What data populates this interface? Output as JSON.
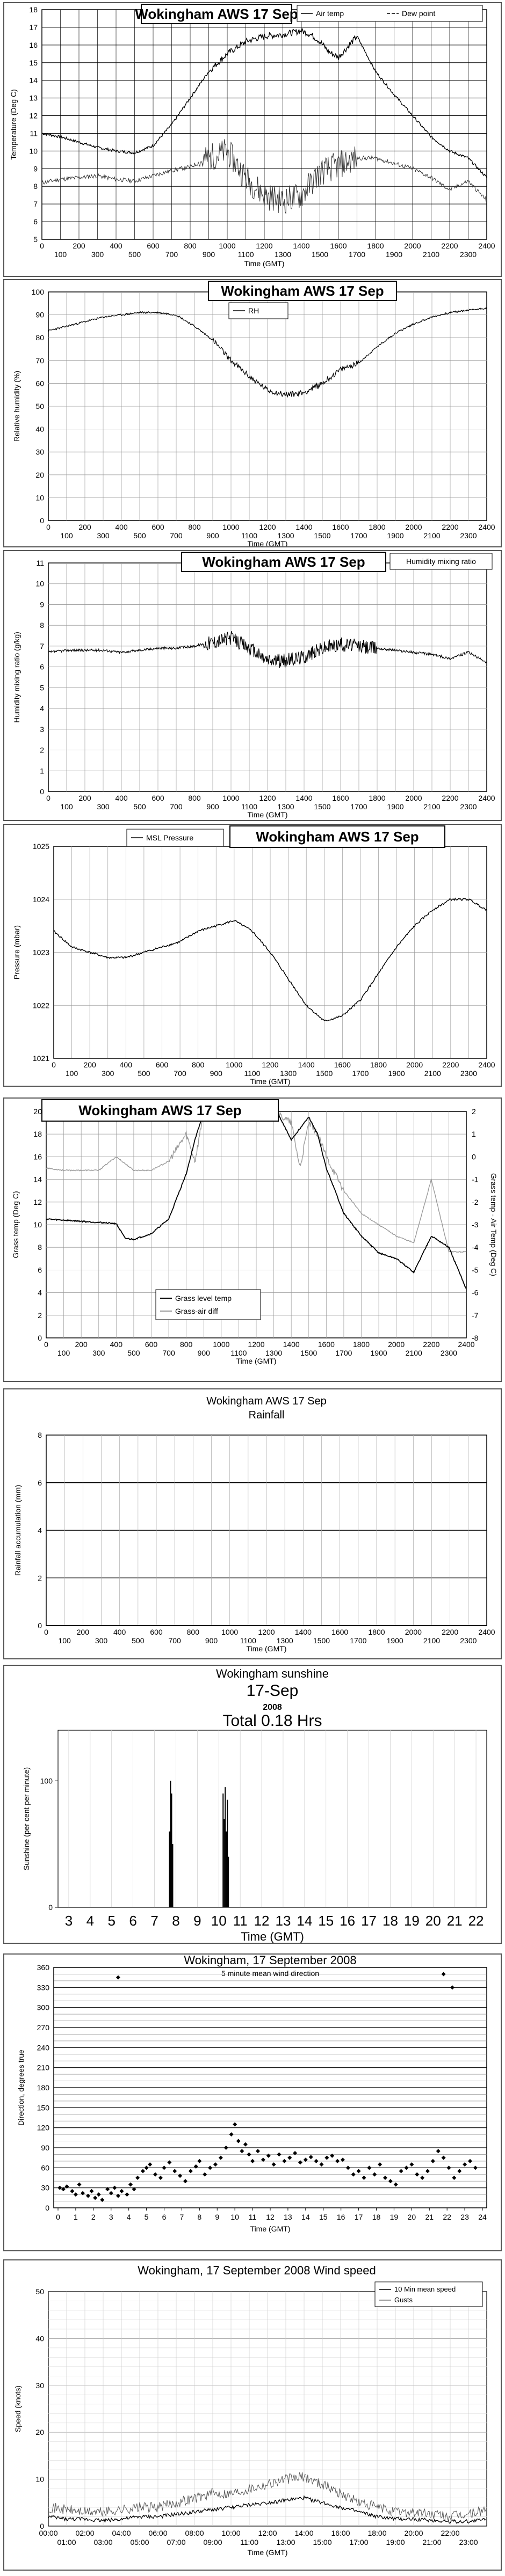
{
  "chart_data": [
    {
      "id": "temp",
      "type": "line",
      "title": "Wokingham AWS 17 Sep",
      "ylabel": "Temperature (Deg C)",
      "xlabel": "Time (GMT)",
      "ylim": [
        5,
        18
      ],
      "yticks": [
        "5",
        "6",
        "7",
        "8",
        "9",
        "10",
        "11",
        "12",
        "13",
        "14",
        "15",
        "16",
        "17",
        "18"
      ],
      "xticks_top": [
        "0",
        "200",
        "400",
        "600",
        "800",
        "1000",
        "1200",
        "1400",
        "1600",
        "1800",
        "2000",
        "2200",
        "2400"
      ],
      "xticks_bottom": [
        "100",
        "300",
        "500",
        "700",
        "900",
        "1100",
        "1300",
        "1500",
        "1700",
        "1900",
        "2100",
        "2300"
      ],
      "legend": [
        "Air temp",
        "Dew point"
      ],
      "series": [
        {
          "name": "Air temp",
          "x": [
            0,
            100,
            200,
            300,
            400,
            500,
            600,
            700,
            800,
            900,
            1000,
            1100,
            1200,
            1300,
            1400,
            1450,
            1500,
            1550,
            1600,
            1700,
            1800,
            1900,
            2000,
            2100,
            2200,
            2300,
            2400
          ],
          "y": [
            11,
            10.8,
            10.5,
            10.2,
            10,
            9.9,
            10.3,
            11.5,
            13,
            14.5,
            15.5,
            16.2,
            16.5,
            16.6,
            16.8,
            16.6,
            16.2,
            15.6,
            15.3,
            16.5,
            14.5,
            13.2,
            12,
            10.8,
            10,
            9.6,
            8.5
          ]
        },
        {
          "name": "Dew point",
          "x": [
            0,
            100,
            200,
            300,
            400,
            500,
            600,
            700,
            800,
            900,
            1000,
            1100,
            1200,
            1300,
            1400,
            1500,
            1600,
            1700,
            1800,
            1900,
            2000,
            2100,
            2200,
            2300,
            2400
          ],
          "y": [
            8.2,
            8.4,
            8.5,
            8.6,
            8.4,
            8.3,
            8.6,
            8.9,
            9.1,
            9.6,
            10,
            8.5,
            7.5,
            7.2,
            7.5,
            8.8,
            9.2,
            9.6,
            9.6,
            9.3,
            9,
            8.5,
            7.8,
            8.3,
            7.2
          ]
        }
      ]
    },
    {
      "id": "rh",
      "type": "line",
      "title": "Wokingham AWS 17 Sep",
      "ylabel": "Relative humidity (%)",
      "xlabel": "Time (GMT)",
      "ylim": [
        0,
        100
      ],
      "yticks": [
        "0",
        "10",
        "20",
        "30",
        "40",
        "50",
        "60",
        "70",
        "80",
        "90",
        "100"
      ],
      "xticks_top": [
        "0",
        "200",
        "400",
        "600",
        "800",
        "1000",
        "1200",
        "1400",
        "1600",
        "1800",
        "2000",
        "2200",
        "2400"
      ],
      "xticks_bottom": [
        "100",
        "300",
        "500",
        "700",
        "900",
        "1100",
        "1300",
        "1500",
        "1700",
        "1900",
        "2100",
        "2300"
      ],
      "legend": [
        "RH"
      ],
      "series": [
        {
          "name": "RH",
          "x": [
            0,
            100,
            200,
            300,
            400,
            500,
            600,
            700,
            800,
            900,
            1000,
            1100,
            1200,
            1300,
            1400,
            1500,
            1600,
            1700,
            1800,
            1900,
            2000,
            2100,
            2200,
            2300,
            2400
          ],
          "y": [
            83,
            85,
            87,
            89,
            90,
            91,
            91,
            90,
            85,
            79,
            70,
            63,
            57,
            55,
            56,
            60,
            66,
            69,
            76,
            82,
            86,
            89,
            91,
            92,
            93
          ]
        }
      ]
    },
    {
      "id": "hmr",
      "type": "line",
      "title": "Wokingham AWS 17 Sep",
      "ylabel": "Humidity mixing ratio (g/kg)",
      "xlabel": "Time (GMT)",
      "ylim": [
        0,
        11
      ],
      "yticks": [
        "0",
        "1",
        "2",
        "3",
        "4",
        "5",
        "6",
        "7",
        "8",
        "9",
        "10",
        "11"
      ],
      "xticks_top": [
        "0",
        "200",
        "400",
        "600",
        "800",
        "1000",
        "1200",
        "1400",
        "1600",
        "1800",
        "2000",
        "2200",
        "2400"
      ],
      "xticks_bottom": [
        "100",
        "300",
        "500",
        "700",
        "900",
        "1100",
        "1300",
        "1500",
        "1700",
        "1900",
        "2100",
        "2300"
      ],
      "legend": [
        "Humidity mixing ratio"
      ],
      "series": [
        {
          "name": "Humidity mixing ratio",
          "x": [
            0,
            100,
            200,
            300,
            400,
            500,
            600,
            700,
            800,
            900,
            1000,
            1100,
            1200,
            1300,
            1400,
            1500,
            1600,
            1700,
            1800,
            1900,
            2000,
            2100,
            2200,
            2300,
            2400
          ],
          "y": [
            6.7,
            6.8,
            6.8,
            6.8,
            6.7,
            6.8,
            6.9,
            6.9,
            7,
            7.2,
            7.4,
            6.9,
            6.3,
            6.3,
            6.5,
            6.9,
            7.1,
            7,
            6.9,
            6.8,
            6.7,
            6.6,
            6.4,
            6.7,
            6.2
          ]
        }
      ]
    },
    {
      "id": "mslp",
      "type": "line",
      "title": "Wokingham AWS 17 Sep",
      "ylabel": "Pressure (mbar)",
      "xlabel": "Time (GMT)",
      "ylim": [
        1021,
        1025
      ],
      "yticks": [
        "1021",
        "1022",
        "1023",
        "1024",
        "1025"
      ],
      "xticks_top": [
        "0",
        "200",
        "400",
        "600",
        "800",
        "1000",
        "1200",
        "1400",
        "1600",
        "1800",
        "2000",
        "2200",
        "2400"
      ],
      "xticks_bottom": [
        "100",
        "300",
        "500",
        "700",
        "900",
        "1100",
        "1300",
        "1500",
        "1700",
        "1900",
        "2100",
        "2300"
      ],
      "legend": [
        "MSL Pressure"
      ],
      "series": [
        {
          "name": "MSL Pressure",
          "x": [
            0,
            100,
            200,
            300,
            400,
            500,
            600,
            700,
            800,
            900,
            1000,
            1100,
            1200,
            1300,
            1400,
            1500,
            1600,
            1700,
            1800,
            1900,
            2000,
            2100,
            2200,
            2300,
            2400
          ],
          "y": [
            1023.4,
            1023.1,
            1023,
            1022.9,
            1022.9,
            1023,
            1023.1,
            1023.2,
            1023.4,
            1023.5,
            1023.6,
            1023.4,
            1023,
            1022.5,
            1022,
            1021.7,
            1021.8,
            1022.1,
            1022.6,
            1023.1,
            1023.5,
            1023.8,
            1024,
            1024,
            1023.8
          ]
        }
      ]
    },
    {
      "id": "grass",
      "type": "line",
      "title": "Wokingham AWS 17 Sep",
      "ylabel": "Grass temp (Deg C)",
      "ylabel_right": "Grass temp - Air Temp (Deg C)",
      "xlabel": "Time (GMT)",
      "ylim": [
        0,
        20
      ],
      "ylim_right": [
        -8,
        2
      ],
      "yticks": [
        "0",
        "2",
        "4",
        "6",
        "8",
        "10",
        "12",
        "14",
        "16",
        "18",
        "20"
      ],
      "yticks_right": [
        "-8",
        "-7",
        "-6",
        "-5",
        "-4",
        "-3",
        "-2",
        "-1",
        "0",
        "1",
        "2"
      ],
      "xticks_top": [
        "0",
        "200",
        "400",
        "600",
        "800",
        "1000",
        "1200",
        "1400",
        "1600",
        "1800",
        "2000",
        "2200",
        "2400"
      ],
      "xticks_bottom": [
        "100",
        "300",
        "500",
        "700",
        "900",
        "1100",
        "1300",
        "1500",
        "1700",
        "1900",
        "2100",
        "2300"
      ],
      "legend": [
        "Grass level temp",
        "Grass-air diff"
      ],
      "series": [
        {
          "name": "Grass level temp",
          "x": [
            0,
            100,
            200,
            300,
            400,
            450,
            500,
            600,
            700,
            800,
            850,
            900,
            1000,
            1100,
            1200,
            1250,
            1300,
            1400,
            1500,
            1550,
            1600,
            1700,
            1800,
            1900,
            2000,
            2100,
            2200,
            2300,
            2400
          ],
          "y": [
            10.5,
            10.4,
            10.3,
            10.2,
            10.1,
            8.8,
            8.7,
            9.2,
            10.5,
            14.5,
            17.5,
            20,
            21,
            20,
            20.5,
            22,
            20.5,
            17.5,
            19.5,
            18,
            15,
            11,
            9,
            7.5,
            7,
            5.8,
            9,
            8,
            4.3
          ]
        },
        {
          "name": "Grass-air diff",
          "x": [
            0,
            100,
            200,
            300,
            400,
            500,
            600,
            700,
            800,
            850,
            900,
            1000,
            1100,
            1200,
            1300,
            1400,
            1450,
            1500,
            1550,
            1600,
            1700,
            1800,
            1900,
            2000,
            2100,
            2200,
            2300,
            2400
          ],
          "y": [
            -0.5,
            -0.6,
            -0.6,
            -0.6,
            0,
            -0.6,
            -0.6,
            -0.2,
            1,
            -0.2,
            2,
            3,
            2.5,
            3,
            2,
            1.5,
            -0.5,
            1.5,
            1,
            0,
            -1.5,
            -2.5,
            -3,
            -3.5,
            -3.8,
            -1,
            -4.2,
            -4.2
          ]
        }
      ]
    },
    {
      "id": "rain",
      "type": "line",
      "title": "Wokingham AWS 17 Sep",
      "subtitle": "Rainfall",
      "ylabel": "Rainfall accumulation (mm)",
      "xlabel": "Time (GMT)",
      "ylim": [
        0,
        8
      ],
      "yticks": [
        "0",
        "2",
        "4",
        "6",
        "8"
      ],
      "xticks_top": [
        "0",
        "200",
        "400",
        "600",
        "800",
        "1000",
        "1200",
        "1400",
        "1600",
        "1800",
        "2000",
        "2200",
        "2400"
      ],
      "xticks_bottom": [
        "100",
        "300",
        "500",
        "700",
        "900",
        "1100",
        "1300",
        "1500",
        "1700",
        "1900",
        "2100",
        "2300"
      ],
      "series": [
        {
          "x": [
            0,
            2400
          ],
          "y": [
            0,
            0
          ]
        }
      ]
    },
    {
      "id": "sun",
      "type": "bar",
      "title": "Wokingham sunshine",
      "date": "17-Sep",
      "year": "2008",
      "total": "Total 0.18 Hrs",
      "ylabel": "Sunshine (per cent per minute)",
      "xlabel": "Time (GMT)",
      "ylim": [
        0,
        140
      ],
      "yticks": [
        "0",
        "100"
      ],
      "xlim": [
        2.5,
        22.5
      ],
      "xticks": [
        "3",
        "4",
        "5",
        "6",
        "7",
        "8",
        "9",
        "10",
        "11",
        "12",
        "13",
        "14",
        "15",
        "16",
        "17",
        "18",
        "19",
        "20",
        "21",
        "22"
      ],
      "x": [
        7.7,
        7.75,
        7.8,
        7.85,
        10.2,
        10.25,
        10.3,
        10.35,
        10.4,
        10.45
      ],
      "values": [
        60,
        100,
        90,
        50,
        90,
        70,
        95,
        60,
        85,
        40
      ]
    },
    {
      "id": "wdir",
      "type": "scatter",
      "title": "Wokingham,  17 September 2008",
      "subtitle": "5 minute mean wind direction",
      "ylabel": "Direction, degrees true",
      "xlabel": "Time (GMT)",
      "ylim": [
        0,
        360
      ],
      "yticks": [
        "0",
        "30",
        "60",
        "90",
        "120",
        "150",
        "180",
        "210",
        "240",
        "270",
        "300",
        "330",
        "360"
      ],
      "xticks": [
        "0",
        "1",
        "2",
        "3",
        "4",
        "5",
        "6",
        "7",
        "8",
        "9",
        "10",
        "11",
        "12",
        "13",
        "14",
        "15",
        "16",
        "17",
        "18",
        "19",
        "20",
        "21",
        "22",
        "23",
        "24"
      ],
      "x": [
        0.1,
        0.3,
        0.5,
        0.8,
        1.0,
        1.2,
        1.4,
        1.7,
        1.9,
        2.1,
        2.3,
        2.5,
        2.8,
        3.0,
        3.2,
        3.4,
        3.6,
        3.9,
        4.1,
        4.3,
        4.5,
        4.8,
        5.0,
        5.2,
        5.5,
        5.8,
        6.0,
        6.3,
        6.6,
        6.9,
        7.2,
        7.5,
        7.8,
        8.0,
        8.3,
        8.6,
        8.9,
        9.2,
        9.5,
        9.8,
        10.0,
        10.2,
        10.4,
        10.6,
        10.8,
        11.0,
        11.3,
        11.6,
        11.9,
        12.2,
        12.5,
        12.8,
        13.1,
        13.4,
        13.7,
        14.0,
        14.3,
        14.6,
        14.9,
        15.2,
        15.5,
        15.8,
        16.1,
        16.4,
        16.7,
        17.0,
        17.3,
        17.6,
        17.9,
        18.2,
        18.5,
        18.8,
        19.1,
        19.4,
        19.7,
        20.0,
        20.3,
        20.6,
        20.9,
        21.2,
        21.5,
        21.8,
        22.1,
        22.4,
        22.7,
        23.0,
        23.3,
        23.6,
        3.4,
        21.8,
        22.3
      ],
      "y": [
        30,
        28,
        32,
        25,
        20,
        35,
        22,
        18,
        25,
        15,
        20,
        12,
        28,
        22,
        30,
        18,
        25,
        20,
        35,
        28,
        45,
        55,
        60,
        65,
        50,
        45,
        60,
        68,
        55,
        48,
        40,
        55,
        62,
        70,
        50,
        60,
        65,
        75,
        90,
        110,
        125,
        100,
        85,
        95,
        80,
        70,
        85,
        72,
        78,
        65,
        80,
        70,
        75,
        82,
        68,
        72,
        76,
        70,
        65,
        75,
        78,
        70,
        72,
        60,
        50,
        55,
        45,
        60,
        50,
        65,
        45,
        40,
        35,
        55,
        60,
        65,
        50,
        45,
        55,
        70,
        85,
        75,
        60,
        45,
        55,
        65,
        70,
        60,
        345,
        350,
        330
      ]
    },
    {
      "id": "wspd",
      "type": "line",
      "title": "Wokingham,  17 September 2008    Wind speed",
      "ylabel": "Speed (knots)",
      "xlabel": "Time (GMT)",
      "ylim": [
        0,
        50
      ],
      "yticks": [
        "0",
        "10",
        "20",
        "30",
        "40",
        "50"
      ],
      "xticks_top": [
        "00:00",
        "02:00",
        "04:00",
        "06:00",
        "08:00",
        "10:00",
        "12:00",
        "14:00",
        "16:00",
        "18:00",
        "20:00",
        "22:00"
      ],
      "xticks_bottom": [
        "01:00",
        "03:00",
        "05:00",
        "07:00",
        "09:00",
        "11:00",
        "13:00",
        "15:00",
        "17:00",
        "19:00",
        "21:00",
        "23:00"
      ],
      "legend": [
        "10 Min mean speed",
        "Gusts"
      ],
      "series": [
        {
          "name": "10 Min mean speed",
          "x": [
            0,
            1,
            2,
            3,
            4,
            5,
            6,
            7,
            8,
            9,
            10,
            11,
            12,
            13,
            14,
            15,
            16,
            17,
            18,
            19,
            20,
            21,
            22,
            23,
            24
          ],
          "y": [
            2,
            1.5,
            1.5,
            1.2,
            1.5,
            2,
            2,
            2.5,
            3,
            3.5,
            4,
            4.5,
            5,
            5.5,
            6,
            5,
            4,
            3,
            2,
            1.5,
            1.5,
            1.2,
            1,
            1,
            1.5
          ]
        },
        {
          "name": "Gusts",
          "x": [
            0,
            1,
            2,
            3,
            4,
            5,
            6,
            7,
            8,
            9,
            10,
            11,
            12,
            13,
            14,
            15,
            16,
            17,
            18,
            19,
            20,
            21,
            22,
            23,
            24
          ],
          "y": [
            4,
            3.5,
            3,
            3,
            3.5,
            4,
            4,
            5,
            6,
            7,
            7,
            8,
            9,
            10,
            10.5,
            9,
            7,
            5,
            4,
            3,
            3,
            2.5,
            2,
            2.5,
            3.5
          ]
        }
      ]
    }
  ]
}
